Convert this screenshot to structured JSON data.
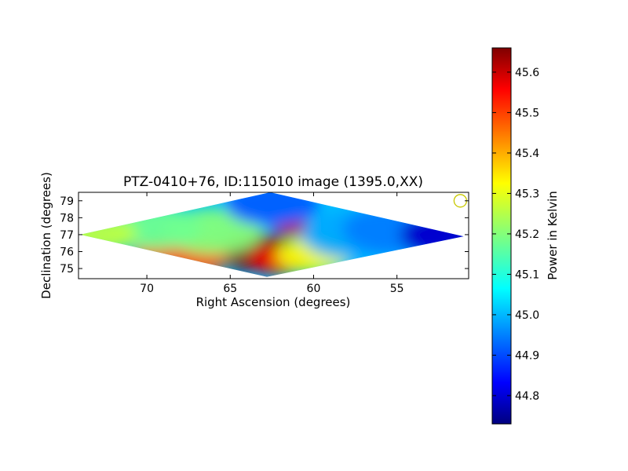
{
  "chart_data": {
    "type": "heatmap",
    "title": "PTZ-0410+76, ID:115010 image (1395.0,XX)",
    "xlabel": "Right Ascension (degrees)",
    "ylabel": "Declination (degrees)",
    "xlim": [
      74.1,
      50.7
    ],
    "ylim": [
      74.4,
      79.5
    ],
    "x_axis_inverted": true,
    "xticks": [
      70,
      65,
      60,
      55
    ],
    "yticks": [
      75,
      76,
      77,
      78,
      79
    ],
    "colorbar": {
      "label": "Power in Kelvin",
      "range": [
        44.73,
        45.66
      ],
      "ticks": [
        44.8,
        44.9,
        45.0,
        45.1,
        45.2,
        45.3,
        45.4,
        45.5,
        45.6
      ],
      "colormap": "jet"
    },
    "coverage_region": {
      "shape": "diamond",
      "vertices_ra_dec": [
        [
          74.0,
          77.0
        ],
        [
          62.6,
          79.5
        ],
        [
          51.0,
          76.9
        ],
        [
          62.8,
          74.5
        ]
      ]
    },
    "field_regions": [
      {
        "ra": 63.5,
        "dec": 76.0,
        "value": 45.65
      },
      {
        "ra": 62.0,
        "dec": 75.5,
        "value": 45.56
      },
      {
        "ra": 61.2,
        "dec": 77.4,
        "value": 45.6
      },
      {
        "ra": 68.0,
        "dec": 75.7,
        "value": 45.47
      },
      {
        "ra": 60.0,
        "dec": 75.8,
        "value": 45.3
      },
      {
        "ra": 66.0,
        "dec": 77.2,
        "value": 45.2
      },
      {
        "ra": 69.5,
        "dec": 77.4,
        "value": 45.18
      },
      {
        "ra": 73.0,
        "dec": 77.0,
        "value": 45.25
      },
      {
        "ra": 57.5,
        "dec": 77.0,
        "value": 45.0
      },
      {
        "ra": 62.5,
        "dec": 78.8,
        "value": 44.93
      },
      {
        "ra": 55.0,
        "dec": 77.3,
        "value": 44.96
      },
      {
        "ra": 52.0,
        "dec": 77.0,
        "value": 44.8
      }
    ],
    "marker": {
      "ra": 51.2,
      "dec": 79.0,
      "shape": "circle",
      "color": "#c8c800"
    }
  }
}
